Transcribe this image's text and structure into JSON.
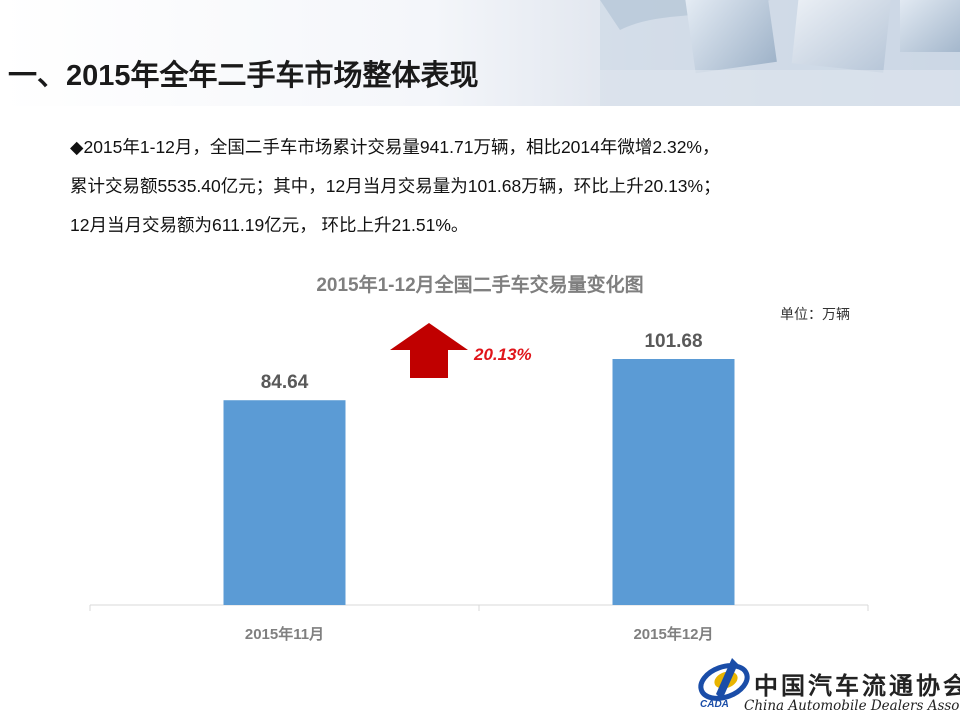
{
  "header": {
    "title": "一、2015年全年二手车市场整体表现"
  },
  "summary": {
    "lines": [
      "◆2015年1-12月，全国二手车市场累计交易量941.71万辆，相比2014年微增2.32%，",
      "累计交易额5535.40亿元；其中，12月当月交易量为101.68万辆，环比上升20.13%；",
      "12月当月交易额为611.19亿元， 环比上升21.51%。"
    ]
  },
  "chart_data": {
    "type": "bar",
    "title": "2015年1-12月全国二手车交易量变化图",
    "unit_label": "单位：万辆",
    "categories": [
      "2015年11月",
      "2015年12月"
    ],
    "values": [
      84.64,
      101.68
    ],
    "data_labels": [
      "84.64",
      "101.68"
    ],
    "ylim": [
      0,
      120
    ],
    "grid": false,
    "bar_color": "#5b9bd5",
    "annotation": {
      "text": "20.13%",
      "color": "#e0151b",
      "arrow_color": "#c00000",
      "arrow_direction": "up"
    }
  },
  "logo": {
    "name_cn": "中国汽车流通协会",
    "name_en": "China Automobile Dealers Association",
    "abbr": "CADA",
    "colors": {
      "primary": "#1a4da8",
      "accent": "#e8b400"
    }
  }
}
